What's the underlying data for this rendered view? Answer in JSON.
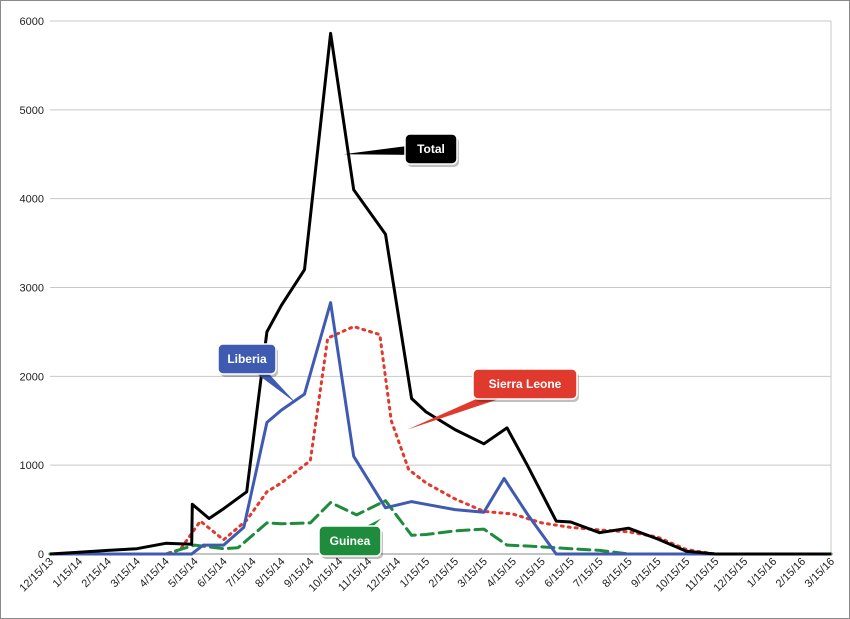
{
  "chart_data": {
    "type": "line",
    "title": "",
    "xlabel": "",
    "ylabel": "",
    "ylim": [
      0,
      6000
    ],
    "yticks": [
      "0",
      "1000",
      "2000",
      "3000",
      "4000",
      "5000",
      "6000"
    ],
    "grid": true,
    "categories": [
      "12/15/13",
      "1/15/14",
      "2/15/14",
      "3/15/14",
      "4/15/14",
      "5/15/14",
      "6/15/14",
      "7/15/14",
      "8/15/14",
      "9/15/14",
      "10/15/14",
      "11/15/14",
      "12/15/14",
      "1/15/15",
      "2/15/15",
      "3/15/15",
      "4/15/15",
      "5/15/15",
      "6/15/15",
      "7/15/15",
      "8/15/15",
      "9/15/15",
      "10/15/15",
      "11/15/15",
      "12/15/15",
      "1/15/16",
      "2/15/16",
      "3/15/16"
    ],
    "series": [
      {
        "name": "Total",
        "color": "#000000",
        "style": "solid",
        "points": [
          [
            0,
            0
          ],
          [
            1,
            20
          ],
          [
            2,
            40
          ],
          [
            3,
            60
          ],
          [
            4,
            120
          ],
          [
            4.9,
            110
          ],
          [
            4.92,
            560
          ],
          [
            5.5,
            400
          ],
          [
            6,
            510
          ],
          [
            6.8,
            700
          ],
          [
            7.5,
            2500
          ],
          [
            8,
            2800
          ],
          [
            8.8,
            3200
          ],
          [
            9.7,
            5860
          ],
          [
            10.5,
            4100
          ],
          [
            11.6,
            3600
          ],
          [
            12.5,
            1750
          ],
          [
            13,
            1600
          ],
          [
            14,
            1400
          ],
          [
            15,
            1240
          ],
          [
            15.8,
            1420
          ],
          [
            16.5,
            1000
          ],
          [
            17.5,
            370
          ],
          [
            18,
            360
          ],
          [
            19,
            240
          ],
          [
            20,
            290
          ],
          [
            21,
            170
          ],
          [
            22,
            30
          ],
          [
            23,
            0
          ],
          [
            24,
            0
          ],
          [
            25,
            0
          ],
          [
            26,
            0
          ],
          [
            27,
            0
          ]
        ]
      },
      {
        "name": "Liberia",
        "color": "#3f5bb1",
        "style": "solid",
        "points": [
          [
            0,
            0
          ],
          [
            1,
            0
          ],
          [
            2,
            0
          ],
          [
            3,
            0
          ],
          [
            4,
            0
          ],
          [
            4.9,
            0
          ],
          [
            5.3,
            100
          ],
          [
            6,
            100
          ],
          [
            6.7,
            300
          ],
          [
            7.5,
            1480
          ],
          [
            8,
            1620
          ],
          [
            8.8,
            1800
          ],
          [
            9.7,
            2830
          ],
          [
            10.5,
            1100
          ],
          [
            11.6,
            520
          ],
          [
            12.5,
            590
          ],
          [
            13,
            560
          ],
          [
            14,
            500
          ],
          [
            15,
            470
          ],
          [
            15.7,
            850
          ],
          [
            16.5,
            450
          ],
          [
            17.5,
            0
          ],
          [
            18,
            0
          ],
          [
            19,
            0
          ],
          [
            20,
            0
          ],
          [
            21,
            0
          ],
          [
            22,
            0
          ],
          [
            23,
            0
          ],
          [
            24,
            0
          ],
          [
            25,
            0
          ],
          [
            26,
            0
          ],
          [
            27,
            0
          ]
        ]
      },
      {
        "name": "Sierra Leone",
        "color": "#e03a2f",
        "style": "dotted",
        "points": [
          [
            0,
            0
          ],
          [
            1,
            0
          ],
          [
            2,
            0
          ],
          [
            3,
            0
          ],
          [
            4,
            0
          ],
          [
            4.5,
            50
          ],
          [
            5.2,
            370
          ],
          [
            6,
            160
          ],
          [
            6.8,
            380
          ],
          [
            7.5,
            700
          ],
          [
            8,
            800
          ],
          [
            9,
            1050
          ],
          [
            9.6,
            2430
          ],
          [
            10.5,
            2560
          ],
          [
            11.4,
            2470
          ],
          [
            11.8,
            1500
          ],
          [
            12.4,
            950
          ],
          [
            13,
            800
          ],
          [
            14,
            620
          ],
          [
            15,
            480
          ],
          [
            16,
            450
          ],
          [
            17,
            350
          ],
          [
            18,
            300
          ],
          [
            19,
            270
          ],
          [
            20,
            250
          ],
          [
            21,
            190
          ],
          [
            22,
            50
          ],
          [
            23,
            0
          ],
          [
            24,
            0
          ],
          [
            25,
            0
          ],
          [
            26,
            0
          ],
          [
            27,
            0
          ]
        ]
      },
      {
        "name": "Guinea",
        "color": "#1e8c3c",
        "style": "dashed",
        "points": [
          [
            0,
            0
          ],
          [
            1,
            0
          ],
          [
            2,
            0
          ],
          [
            3,
            0
          ],
          [
            4,
            0
          ],
          [
            5,
            100
          ],
          [
            6,
            60
          ],
          [
            6.5,
            70
          ],
          [
            7.5,
            350
          ],
          [
            8,
            340
          ],
          [
            9,
            350
          ],
          [
            9.7,
            580
          ],
          [
            10.6,
            440
          ],
          [
            11.6,
            600
          ],
          [
            12.5,
            210
          ],
          [
            13,
            220
          ],
          [
            14,
            260
          ],
          [
            15,
            280
          ],
          [
            15.8,
            100
          ],
          [
            16.5,
            90
          ],
          [
            17,
            80
          ],
          [
            17.5,
            70
          ],
          [
            18,
            60
          ],
          [
            19,
            40
          ],
          [
            20,
            0
          ],
          [
            21,
            0
          ],
          [
            22,
            0
          ],
          [
            23,
            0
          ],
          [
            24,
            0
          ],
          [
            25,
            0
          ],
          [
            26,
            0
          ],
          [
            27,
            0
          ]
        ]
      }
    ],
    "callouts": [
      {
        "label": "Total",
        "box_color": "#000000",
        "anchor": [
          10.15,
          4500
        ]
      },
      {
        "label": "Liberia",
        "box_color": "#3f5bb1",
        "anchor": [
          8.5,
          1700
        ]
      },
      {
        "label": "Sierra Leone",
        "box_color": "#e03a2f",
        "anchor": [
          12.35,
          1400
        ]
      },
      {
        "label": "Guinea",
        "box_color": "#1e8c3c",
        "anchor": [
          11.45,
          400
        ]
      }
    ]
  }
}
